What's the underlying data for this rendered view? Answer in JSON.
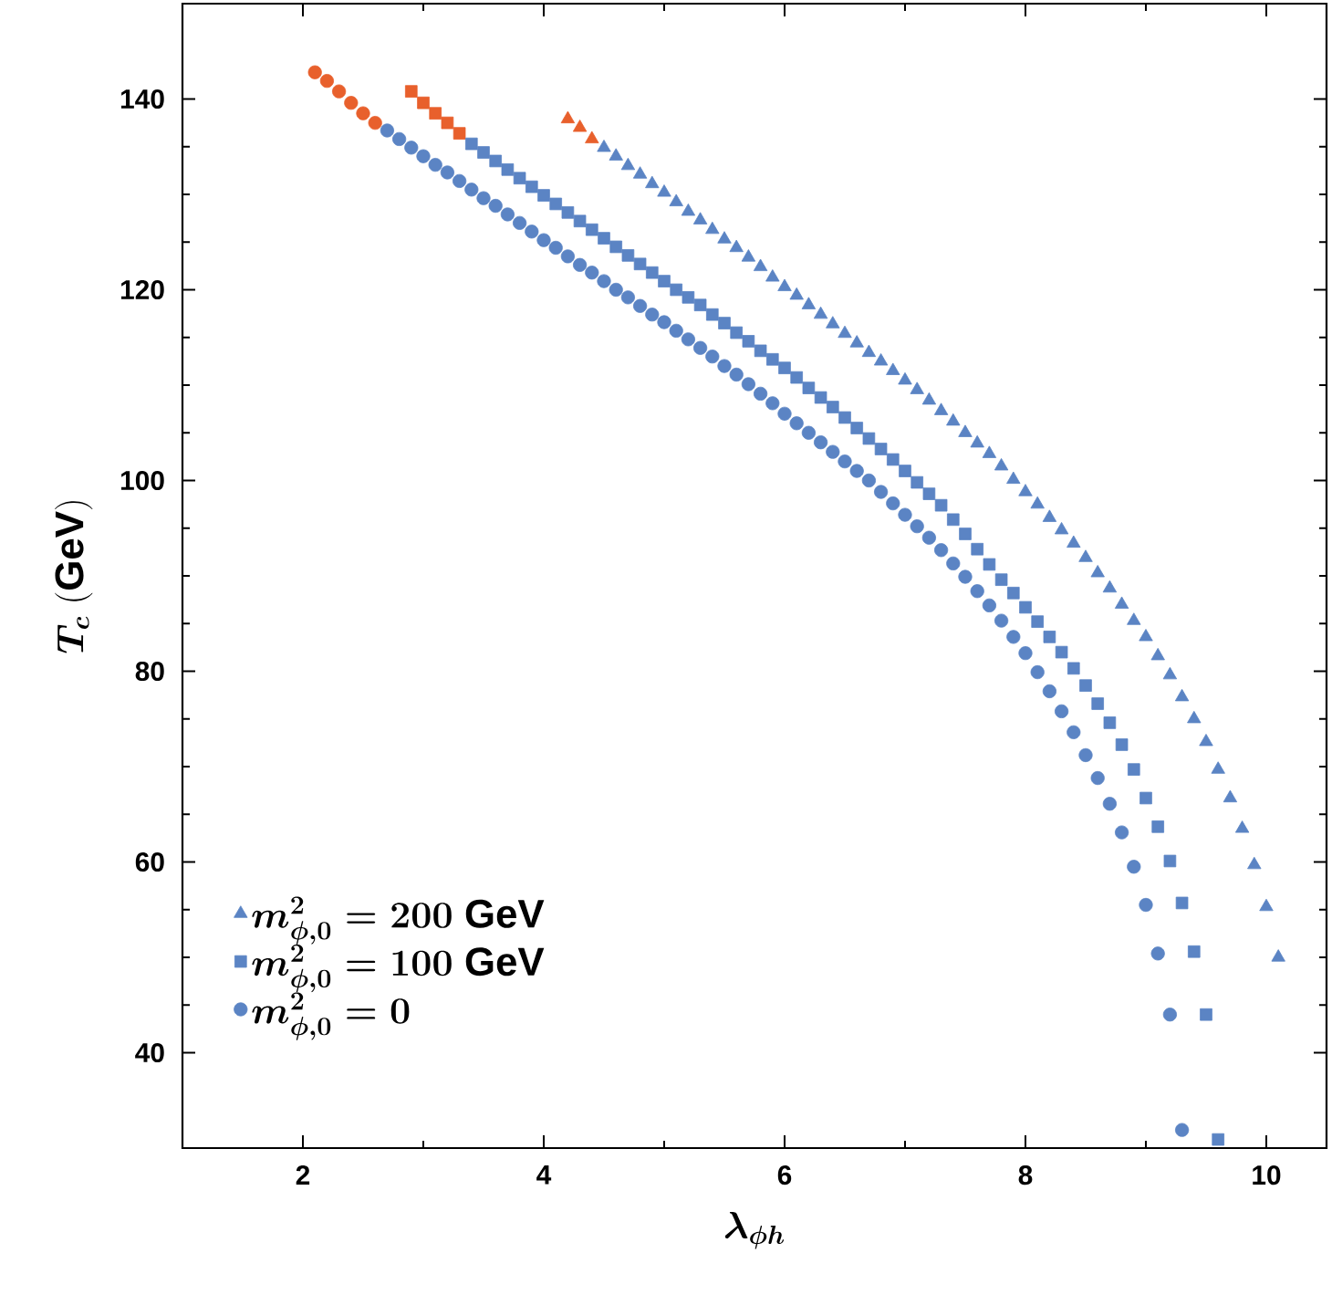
{
  "chart_data": {
    "type": "scatter",
    "xlabel": "\\boldsymbol{\\lambda_{\\phi h}}",
    "ylabel": "\\boldsymbol{T_c}\\ \\mathbf{(GeV)}",
    "xlim": [
      1,
      10.5
    ],
    "ylim": [
      30,
      150
    ],
    "xticks": [
      2,
      4,
      6,
      8,
      10
    ],
    "yticks": [
      40,
      60,
      80,
      100,
      120,
      140
    ],
    "legend": "bottom left",
    "series": [
      {
        "name": "\\boldsymbol{m^{2}_{\\phi,0}=200}\\ \\mathbf{GeV}",
        "marker": "triangle",
        "color": "#5b84c4",
        "x": [
          4.2,
          4.3,
          4.4,
          4.5,
          4.6,
          4.7,
          4.8,
          4.9,
          5.0,
          5.1,
          5.2,
          5.3,
          5.4,
          5.5,
          5.6,
          5.7,
          5.8,
          5.9,
          6.0,
          6.1,
          6.2,
          6.3,
          6.4,
          6.5,
          6.6,
          6.7,
          6.8,
          6.9,
          7.0,
          7.1,
          7.2,
          7.3,
          7.4,
          7.5,
          7.6,
          7.7,
          7.8,
          7.9,
          8.0,
          8.1,
          8.2,
          8.3,
          8.4,
          8.5,
          8.6,
          8.7,
          8.8,
          8.9,
          9.0,
          9.1,
          9.2,
          9.3,
          9.4,
          9.5,
          9.6,
          9.7,
          9.8,
          9.9,
          10.0,
          10.1
        ],
        "values": [
          137.9,
          137.0,
          135.8,
          134.9,
          134.0,
          133.0,
          132.1,
          131.1,
          130.2,
          129.2,
          128.2,
          127.3,
          126.3,
          125.3,
          124.4,
          123.4,
          122.4,
          121.3,
          120.3,
          119.4,
          118.4,
          117.4,
          116.4,
          115.4,
          114.4,
          113.4,
          112.5,
          111.5,
          110.5,
          109.5,
          108.4,
          107.3,
          106.2,
          105.0,
          103.9,
          102.8,
          101.5,
          100.1,
          98.8,
          97.5,
          96.1,
          94.8,
          93.4,
          91.9,
          90.3,
          88.7,
          87.0,
          85.3,
          83.6,
          81.6,
          79.6,
          77.3,
          75.0,
          72.6,
          69.7,
          66.7,
          63.5,
          59.7,
          55.3,
          50.0
        ],
        "colors": [
          "#e8602c",
          "#e8602c",
          "#e8602c",
          "#5b84c4",
          "#5b84c4",
          "#5b84c4",
          "#5b84c4",
          "#5b84c4",
          "#5b84c4",
          "#5b84c4",
          "#5b84c4",
          "#5b84c4",
          "#5b84c4",
          "#5b84c4",
          "#5b84c4",
          "#5b84c4",
          "#5b84c4",
          "#5b84c4",
          "#5b84c4",
          "#5b84c4",
          "#5b84c4",
          "#5b84c4",
          "#5b84c4",
          "#5b84c4",
          "#5b84c4",
          "#5b84c4",
          "#5b84c4",
          "#5b84c4",
          "#5b84c4",
          "#5b84c4",
          "#5b84c4",
          "#5b84c4",
          "#5b84c4",
          "#5b84c4",
          "#5b84c4",
          "#5b84c4",
          "#5b84c4",
          "#5b84c4",
          "#5b84c4",
          "#5b84c4",
          "#5b84c4",
          "#5b84c4",
          "#5b84c4",
          "#5b84c4",
          "#5b84c4",
          "#5b84c4",
          "#5b84c4",
          "#5b84c4",
          "#5b84c4",
          "#5b84c4",
          "#5b84c4",
          "#5b84c4",
          "#5b84c4",
          "#5b84c4",
          "#5b84c4",
          "#5b84c4",
          "#5b84c4",
          "#5b84c4",
          "#5b84c4",
          "#5b84c4"
        ]
      },
      {
        "name": "\\boldsymbol{m^{2}_{\\phi,0}=100}\\ \\mathbf{GeV}",
        "marker": "square",
        "color": "#5b84c4",
        "x": [
          2.9,
          3.0,
          3.1,
          3.2,
          3.3,
          3.4,
          3.5,
          3.6,
          3.7,
          3.8,
          3.9,
          4.0,
          4.1,
          4.2,
          4.3,
          4.4,
          4.5,
          4.6,
          4.7,
          4.8,
          4.9,
          5.0,
          5.1,
          5.2,
          5.3,
          5.4,
          5.5,
          5.6,
          5.7,
          5.8,
          5.9,
          6.0,
          6.1,
          6.2,
          6.3,
          6.4,
          6.5,
          6.6,
          6.7,
          6.8,
          6.9,
          7.0,
          7.1,
          7.2,
          7.3,
          7.4,
          7.5,
          7.6,
          7.7,
          7.8,
          7.9,
          8.0,
          8.1,
          8.2,
          8.3,
          8.4,
          8.5,
          8.6,
          8.7,
          8.8,
          8.9,
          9.0,
          9.1,
          9.2,
          9.3,
          9.4,
          9.5,
          9.6
        ],
        "values": [
          140.8,
          139.6,
          138.5,
          137.5,
          136.4,
          135.3,
          134.4,
          133.5,
          132.6,
          131.7,
          130.8,
          129.9,
          129.0,
          128.1,
          127.2,
          126.3,
          125.4,
          124.5,
          123.6,
          122.7,
          121.8,
          120.9,
          120.0,
          119.2,
          118.4,
          117.4,
          116.5,
          115.5,
          114.6,
          113.6,
          112.7,
          111.8,
          110.8,
          109.7,
          108.7,
          107.7,
          106.6,
          105.5,
          104.4,
          103.3,
          102.2,
          101.0,
          99.8,
          98.6,
          97.4,
          95.9,
          94.4,
          92.8,
          91.2,
          89.6,
          88.2,
          86.7,
          85.2,
          83.6,
          82.0,
          80.3,
          78.5,
          76.6,
          74.6,
          72.3,
          69.7,
          66.7,
          63.7,
          60.1,
          55.7,
          50.6,
          44.0,
          30.9
        ],
        "colors": [
          "#e8602c",
          "#e8602c",
          "#e8602c",
          "#e8602c",
          "#e8602c",
          "#5b84c4",
          "#5b84c4",
          "#5b84c4",
          "#5b84c4",
          "#5b84c4",
          "#5b84c4",
          "#5b84c4",
          "#5b84c4",
          "#5b84c4",
          "#5b84c4",
          "#5b84c4",
          "#5b84c4",
          "#5b84c4",
          "#5b84c4",
          "#5b84c4",
          "#5b84c4",
          "#5b84c4",
          "#5b84c4",
          "#5b84c4",
          "#5b84c4",
          "#5b84c4",
          "#5b84c4",
          "#5b84c4",
          "#5b84c4",
          "#5b84c4",
          "#5b84c4",
          "#5b84c4",
          "#5b84c4",
          "#5b84c4",
          "#5b84c4",
          "#5b84c4",
          "#5b84c4",
          "#5b84c4",
          "#5b84c4",
          "#5b84c4",
          "#5b84c4",
          "#5b84c4",
          "#5b84c4",
          "#5b84c4",
          "#5b84c4",
          "#5b84c4",
          "#5b84c4",
          "#5b84c4",
          "#5b84c4",
          "#5b84c4",
          "#5b84c4",
          "#5b84c4",
          "#5b84c4",
          "#5b84c4",
          "#5b84c4",
          "#5b84c4",
          "#5b84c4",
          "#5b84c4",
          "#5b84c4",
          "#5b84c4",
          "#5b84c4",
          "#5b84c4",
          "#5b84c4",
          "#5b84c4",
          "#5b84c4",
          "#5b84c4",
          "#5b84c4",
          "#5b84c4"
        ]
      },
      {
        "name": "\\boldsymbol{m^{2}_{\\phi,0}=0}",
        "marker": "circle",
        "color": "#5b84c4",
        "x": [
          2.1,
          2.2,
          2.3,
          2.4,
          2.5,
          2.6,
          2.7,
          2.8,
          2.9,
          3.0,
          3.1,
          3.2,
          3.3,
          3.4,
          3.5,
          3.6,
          3.7,
          3.8,
          3.9,
          4.0,
          4.1,
          4.2,
          4.3,
          4.4,
          4.5,
          4.6,
          4.7,
          4.8,
          4.9,
          5.0,
          5.1,
          5.2,
          5.3,
          5.4,
          5.5,
          5.6,
          5.7,
          5.8,
          5.9,
          6.0,
          6.1,
          6.2,
          6.3,
          6.4,
          6.5,
          6.6,
          6.7,
          6.8,
          6.9,
          7.0,
          7.1,
          7.2,
          7.3,
          7.4,
          7.5,
          7.6,
          7.7,
          7.8,
          7.9,
          8.0,
          8.1,
          8.2,
          8.3,
          8.4,
          8.5,
          8.6,
          8.7,
          8.8,
          8.9,
          9.0,
          9.1,
          9.2,
          9.3
        ],
        "values": [
          142.8,
          141.9,
          140.8,
          139.6,
          138.5,
          137.5,
          136.7,
          135.8,
          134.9,
          134.0,
          133.1,
          132.3,
          131.4,
          130.5,
          129.6,
          128.8,
          127.9,
          127.0,
          126.1,
          125.2,
          124.4,
          123.5,
          122.6,
          121.8,
          120.9,
          120.0,
          119.2,
          118.3,
          117.4,
          116.6,
          115.7,
          114.8,
          113.9,
          113.0,
          112.0,
          111.1,
          110.1,
          109.1,
          108.1,
          107.0,
          106.0,
          105.0,
          104.0,
          103.0,
          102.0,
          101.0,
          100.0,
          98.8,
          97.6,
          96.4,
          95.2,
          94.0,
          92.7,
          91.3,
          89.9,
          88.4,
          86.9,
          85.3,
          83.6,
          81.9,
          79.9,
          77.9,
          75.8,
          73.6,
          71.2,
          68.8,
          66.1,
          63.1,
          59.5,
          55.5,
          50.4,
          44.0,
          31.9
        ],
        "colors": [
          "#e8602c",
          "#e8602c",
          "#e8602c",
          "#e8602c",
          "#e8602c",
          "#e8602c",
          "#5b84c4",
          "#5b84c4",
          "#5b84c4",
          "#5b84c4",
          "#5b84c4",
          "#5b84c4",
          "#5b84c4",
          "#5b84c4",
          "#5b84c4",
          "#5b84c4",
          "#5b84c4",
          "#5b84c4",
          "#5b84c4",
          "#5b84c4",
          "#5b84c4",
          "#5b84c4",
          "#5b84c4",
          "#5b84c4",
          "#5b84c4",
          "#5b84c4",
          "#5b84c4",
          "#5b84c4",
          "#5b84c4",
          "#5b84c4",
          "#5b84c4",
          "#5b84c4",
          "#5b84c4",
          "#5b84c4",
          "#5b84c4",
          "#5b84c4",
          "#5b84c4",
          "#5b84c4",
          "#5b84c4",
          "#5b84c4",
          "#5b84c4",
          "#5b84c4",
          "#5b84c4",
          "#5b84c4",
          "#5b84c4",
          "#5b84c4",
          "#5b84c4",
          "#5b84c4",
          "#5b84c4",
          "#5b84c4",
          "#5b84c4",
          "#5b84c4",
          "#5b84c4",
          "#5b84c4",
          "#5b84c4",
          "#5b84c4",
          "#5b84c4",
          "#5b84c4",
          "#5b84c4",
          "#5b84c4",
          "#5b84c4",
          "#5b84c4",
          "#5b84c4",
          "#5b84c4",
          "#5b84c4",
          "#5b84c4",
          "#5b84c4",
          "#5b84c4",
          "#5b84c4",
          "#5b84c4",
          "#5b84c4",
          "#5b84c4",
          "#5b84c4"
        ]
      }
    ]
  }
}
